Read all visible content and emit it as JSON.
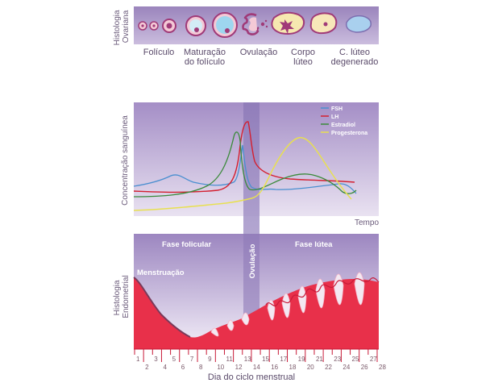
{
  "ovary": {
    "side_label_line1": "Histologia",
    "side_label_line2": "Ovariana",
    "stages": [
      {
        "line1": "Folículo",
        "line2": ""
      },
      {
        "line1": "Maturação",
        "line2": "do folículo"
      },
      {
        "line1": "Ovulação",
        "line2": ""
      },
      {
        "line1": "Corpo",
        "line2": "lúteo"
      },
      {
        "line1": "C. lúteo",
        "line2": "degenerado"
      }
    ]
  },
  "hormones": {
    "ylabel": "Concentração sanguínea",
    "xlabel": "Tempo",
    "legend": [
      {
        "name": "FSH",
        "color": "#4a8fd0"
      },
      {
        "name": "LH",
        "color": "#d42030"
      },
      {
        "name": "Estradiol",
        "color": "#3a8a3a"
      },
      {
        "name": "Progesterona",
        "color": "#e8e050"
      }
    ]
  },
  "endometrium": {
    "side_label_line1": "Histologia",
    "side_label_line2": "Endometrial",
    "phase_follicular": "Fase folicular",
    "phase_luteal": "Fase lútea",
    "ovulation": "Ovulação",
    "menstruation": "Menstruação"
  },
  "day_axis": {
    "label": "Dia do ciclo menstrual",
    "ticks": [
      "1",
      "2",
      "3",
      "4",
      "5",
      "6",
      "7",
      "8",
      "9",
      "10",
      "11",
      "12",
      "13",
      "14",
      "15",
      "16",
      "17",
      "18",
      "19",
      "20",
      "21",
      "22",
      "23",
      "24",
      "25",
      "26",
      "27",
      "28"
    ]
  },
  "colors": {
    "panel": "#a894c4",
    "tissue": "#e8304a",
    "tissue_dark": "#c81a38",
    "fsh": "#4a8fd0",
    "lh": "#d42030",
    "estradiol": "#3a8a3a",
    "progesterone": "#e8e050"
  }
}
